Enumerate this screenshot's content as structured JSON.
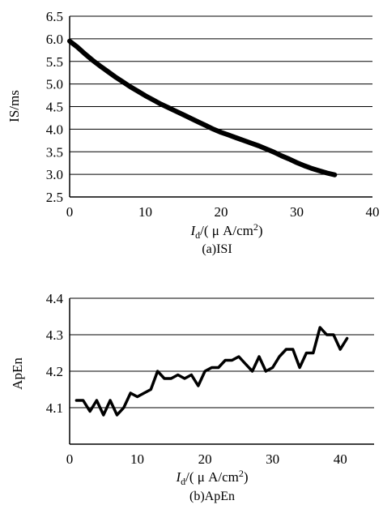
{
  "chart_data": [
    {
      "type": "line",
      "caption": "(a)ISI",
      "xlabel_var": "I",
      "xlabel_sub": "d",
      "xlabel_unit": "/( μ A/cm",
      "xlabel_sup": "2",
      "xlabel_close": ")",
      "ylabel": "IS/ms",
      "xlim": [
        0,
        40
      ],
      "ylim": [
        2.5,
        6.5
      ],
      "xticks": [
        "0",
        "10",
        "20",
        "30",
        "40"
      ],
      "yticks": [
        "2.5",
        "3.0",
        "3.5",
        "4.0",
        "4.5",
        "5.0",
        "5.5",
        "6.0",
        "6.5"
      ],
      "grid": "horizontal",
      "series": [
        {
          "x": [
            0,
            1,
            2,
            3,
            4,
            5,
            6,
            7,
            8,
            9,
            10,
            11,
            12,
            13,
            14,
            15,
            16,
            17,
            18,
            19,
            20,
            21,
            22,
            23,
            24,
            25,
            26,
            27,
            28,
            29,
            30,
            31,
            32,
            33,
            34,
            35
          ],
          "y": [
            5.95,
            5.82,
            5.67,
            5.53,
            5.4,
            5.28,
            5.16,
            5.05,
            4.94,
            4.84,
            4.74,
            4.65,
            4.56,
            4.48,
            4.4,
            4.32,
            4.24,
            4.16,
            4.08,
            4.0,
            3.93,
            3.87,
            3.81,
            3.75,
            3.69,
            3.63,
            3.56,
            3.49,
            3.41,
            3.34,
            3.26,
            3.19,
            3.13,
            3.08,
            3.03,
            2.99
          ]
        }
      ]
    },
    {
      "type": "line",
      "caption": "(b)ApEn",
      "xlabel_var": "I",
      "xlabel_sub": "d",
      "xlabel_unit": "/( μ A/cm",
      "xlabel_sup": "2",
      "xlabel_close": ")",
      "ylabel": "ApEn",
      "xlim": [
        0,
        45
      ],
      "ylim": [
        4.0,
        4.4
      ],
      "xticks": [
        "0",
        "10",
        "20",
        "30",
        "40"
      ],
      "yticks": [
        "4.1",
        "4.2",
        "4.3",
        "4.4"
      ],
      "grid": "horizontal",
      "series": [
        {
          "x": [
            1,
            2,
            3,
            4,
            5,
            6,
            7,
            8,
            9,
            10,
            11,
            12,
            13,
            14,
            15,
            16,
            17,
            18,
            19,
            20,
            21,
            22,
            23,
            24,
            25,
            26,
            27,
            28,
            29,
            30,
            31,
            32,
            33,
            34,
            35,
            36,
            37,
            38,
            39,
            40,
            41
          ],
          "y": [
            4.12,
            4.12,
            4.09,
            4.12,
            4.08,
            4.12,
            4.08,
            4.1,
            4.14,
            4.13,
            4.14,
            4.15,
            4.2,
            4.18,
            4.18,
            4.19,
            4.18,
            4.19,
            4.16,
            4.2,
            4.21,
            4.21,
            4.23,
            4.23,
            4.24,
            4.22,
            4.2,
            4.24,
            4.2,
            4.21,
            4.24,
            4.26,
            4.26,
            4.21,
            4.25,
            4.25,
            4.32,
            4.3,
            4.3,
            4.26,
            4.29
          ]
        }
      ]
    }
  ]
}
